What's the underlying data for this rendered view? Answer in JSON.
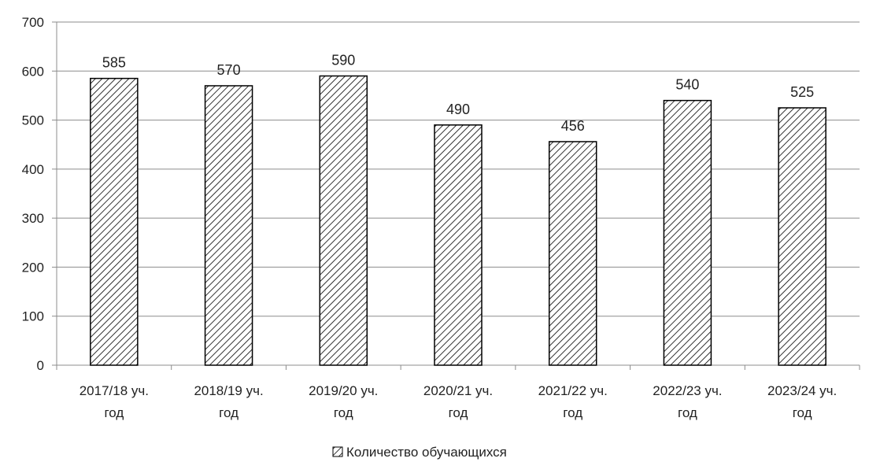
{
  "chart_data": {
    "type": "bar",
    "categories": [
      [
        "2017/18 уч.",
        "год"
      ],
      [
        "2018/19 уч.",
        "год"
      ],
      [
        "2019/20 уч.",
        "год"
      ],
      [
        "2020/21 уч.",
        "год"
      ],
      [
        "2021/22 уч.",
        "год"
      ],
      [
        "2022/23 уч.",
        "год"
      ],
      [
        "2023/24 уч.",
        "год"
      ]
    ],
    "series": [
      {
        "name": "Количество обучающихся",
        "values": [
          585,
          570,
          590,
          490,
          456,
          540,
          525
        ]
      }
    ],
    "ylim": [
      0,
      700
    ],
    "yticks": [
      0,
      100,
      200,
      300,
      400,
      500,
      600,
      700
    ],
    "grid": true,
    "legend": "bottom-center",
    "data_labels": true,
    "bar_fill": "diagonal-hatch",
    "colors": {
      "bar_stroke": "#000000",
      "hatch": "#000000",
      "grid": "#8c8c8c",
      "axis": "#8c8c8c",
      "background": "#ffffff"
    }
  }
}
